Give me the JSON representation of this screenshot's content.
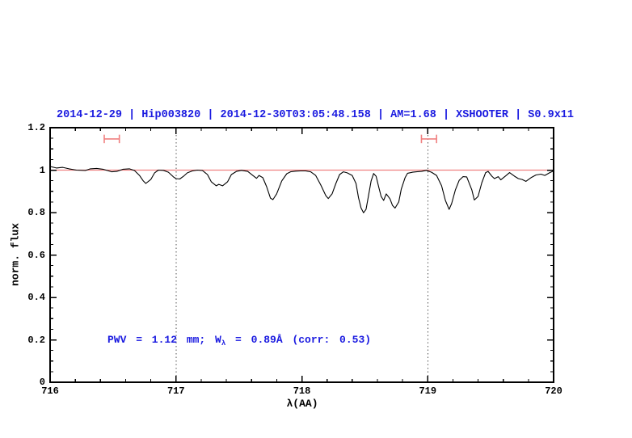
{
  "title": {
    "text": "2014-12-29 | Hip003820 | 2014-12-30T03:05:48.158 | AM=1.68 | XSHOOTER | S0.9x11",
    "color": "#1a1ae0"
  },
  "annotation": {
    "prefix": "PWV = 1.12 mm; W",
    "subscript": "λ",
    "suffix": " = 0.89Å (corr: 0.53)",
    "color": "#1a1ae0"
  },
  "chart_data": {
    "type": "line",
    "title": "2014-12-29 | Hip003820 | 2014-12-30T03:05:48.158 | AM=1.68 | XSHOOTER | S0.9x11",
    "xlabel": "λ(AA)",
    "ylabel": "norm. flux",
    "xlim": [
      716,
      720
    ],
    "ylim": [
      0,
      1.2
    ],
    "x_ticks": [
      716,
      717,
      718,
      719,
      720
    ],
    "x_tick_labels": [
      "716",
      "717",
      "718",
      "719",
      "720"
    ],
    "x_minor_step": 0.2,
    "y_ticks": [
      0,
      0.2,
      0.4,
      0.6,
      0.8,
      1.0,
      1.2
    ],
    "y_tick_labels": [
      "0",
      "0.2",
      "0.4",
      "0.6",
      "0.8",
      "1",
      "1.2"
    ],
    "y_minor_step": 0.05,
    "grid": "off",
    "legend": "none",
    "dotted_vlines": [
      717,
      719
    ],
    "reference_line_y": 1.0,
    "colors": {
      "spectrum": "#000000",
      "reference": "#f08080",
      "marker": "#f08080",
      "dotted": "#555555"
    },
    "range_markers": [
      {
        "x_min": 716.43,
        "x_max": 716.55,
        "y": 1.147,
        "cap_half": 0.02
      },
      {
        "x_min": 718.95,
        "x_max": 719.07,
        "y": 1.147,
        "cap_half": 0.02
      }
    ],
    "series": [
      {
        "name": "normalized telluric spectrum",
        "color": "#000000",
        "points": [
          [
            716.0,
            1.017
          ],
          [
            716.05,
            1.01
          ],
          [
            716.1,
            1.013
          ],
          [
            716.15,
            1.006
          ],
          [
            716.21,
            1.0
          ],
          [
            716.28,
            0.998
          ],
          [
            716.32,
            1.006
          ],
          [
            716.37,
            1.008
          ],
          [
            716.42,
            1.004
          ],
          [
            716.49,
            0.992
          ],
          [
            716.53,
            0.994
          ],
          [
            716.58,
            1.004
          ],
          [
            716.63,
            1.006
          ],
          [
            716.67,
            0.998
          ],
          [
            716.71,
            0.975
          ],
          [
            716.74,
            0.949
          ],
          [
            716.76,
            0.937
          ],
          [
            716.8,
            0.956
          ],
          [
            716.83,
            0.987
          ],
          [
            716.86,
            1.0
          ],
          [
            716.9,
            0.999
          ],
          [
            716.94,
            0.99
          ],
          [
            716.98,
            0.968
          ],
          [
            717.0,
            0.96
          ],
          [
            717.03,
            0.958
          ],
          [
            717.06,
            0.971
          ],
          [
            717.09,
            0.987
          ],
          [
            717.13,
            0.996
          ],
          [
            717.17,
            1.0
          ],
          [
            717.21,
            0.998
          ],
          [
            717.25,
            0.979
          ],
          [
            717.28,
            0.945
          ],
          [
            717.32,
            0.926
          ],
          [
            717.34,
            0.933
          ],
          [
            717.37,
            0.926
          ],
          [
            717.41,
            0.945
          ],
          [
            717.44,
            0.979
          ],
          [
            717.48,
            0.994
          ],
          [
            717.52,
            0.999
          ],
          [
            717.57,
            0.994
          ],
          [
            717.61,
            0.975
          ],
          [
            717.64,
            0.961
          ],
          [
            717.66,
            0.975
          ],
          [
            717.69,
            0.964
          ],
          [
            717.72,
            0.922
          ],
          [
            717.75,
            0.868
          ],
          [
            717.77,
            0.861
          ],
          [
            717.8,
            0.888
          ],
          [
            717.84,
            0.949
          ],
          [
            717.88,
            0.983
          ],
          [
            717.91,
            0.992
          ],
          [
            717.95,
            0.995
          ],
          [
            717.99,
            0.996
          ],
          [
            718.03,
            0.996
          ],
          [
            718.07,
            0.992
          ],
          [
            718.11,
            0.975
          ],
          [
            718.15,
            0.93
          ],
          [
            718.19,
            0.88
          ],
          [
            718.21,
            0.866
          ],
          [
            718.24,
            0.888
          ],
          [
            718.27,
            0.937
          ],
          [
            718.3,
            0.979
          ],
          [
            718.33,
            0.992
          ],
          [
            718.36,
            0.987
          ],
          [
            718.4,
            0.975
          ],
          [
            718.43,
            0.937
          ],
          [
            718.45,
            0.87
          ],
          [
            718.47,
            0.822
          ],
          [
            718.49,
            0.799
          ],
          [
            718.51,
            0.815
          ],
          [
            718.53,
            0.88
          ],
          [
            718.55,
            0.949
          ],
          [
            718.57,
            0.984
          ],
          [
            718.59,
            0.971
          ],
          [
            718.61,
            0.922
          ],
          [
            718.63,
            0.876
          ],
          [
            718.65,
            0.857
          ],
          [
            718.67,
            0.888
          ],
          [
            718.7,
            0.865
          ],
          [
            718.72,
            0.834
          ],
          [
            718.74,
            0.821
          ],
          [
            718.77,
            0.85
          ],
          [
            718.79,
            0.91
          ],
          [
            718.82,
            0.964
          ],
          [
            718.84,
            0.985
          ],
          [
            718.88,
            0.99
          ],
          [
            718.91,
            0.992
          ],
          [
            718.95,
            0.994
          ],
          [
            718.99,
            0.999
          ],
          [
            719.03,
            0.99
          ],
          [
            719.07,
            0.975
          ],
          [
            719.11,
            0.926
          ],
          [
            719.14,
            0.857
          ],
          [
            719.17,
            0.815
          ],
          [
            719.19,
            0.842
          ],
          [
            719.22,
            0.907
          ],
          [
            719.25,
            0.952
          ],
          [
            719.28,
            0.969
          ],
          [
            719.31,
            0.968
          ],
          [
            719.35,
            0.907
          ],
          [
            719.37,
            0.859
          ],
          [
            719.4,
            0.876
          ],
          [
            719.43,
            0.941
          ],
          [
            719.46,
            0.988
          ],
          [
            719.48,
            0.994
          ],
          [
            719.51,
            0.971
          ],
          [
            719.53,
            0.96
          ],
          [
            719.56,
            0.969
          ],
          [
            719.58,
            0.954
          ],
          [
            719.62,
            0.973
          ],
          [
            719.65,
            0.988
          ],
          [
            719.69,
            0.971
          ],
          [
            719.72,
            0.96
          ],
          [
            719.75,
            0.956
          ],
          [
            719.78,
            0.947
          ],
          [
            719.82,
            0.964
          ],
          [
            719.86,
            0.977
          ],
          [
            719.9,
            0.981
          ],
          [
            719.93,
            0.975
          ],
          [
            719.97,
            0.988
          ],
          [
            720.0,
            0.996
          ]
        ]
      }
    ]
  }
}
